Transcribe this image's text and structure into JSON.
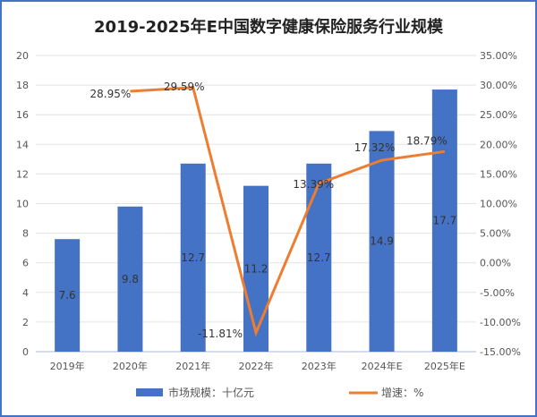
{
  "chart_data": {
    "type": "bar+line",
    "title": "2019-2025年E中国数字健康保险服务行业规模",
    "categories": [
      "2019年",
      "2020年",
      "2021年",
      "2022年",
      "2023年",
      "2024年E",
      "2025年E"
    ],
    "series": [
      {
        "name": "市场规模：十亿元",
        "type": "bar",
        "axis": "left",
        "color": "#4472c4",
        "values": [
          7.6,
          9.8,
          12.7,
          11.2,
          12.7,
          14.9,
          17.7
        ],
        "labels": [
          "7.6",
          "9.8",
          "12.7",
          "11.2",
          "12.7",
          "14.9",
          "17.7"
        ]
      },
      {
        "name": "增速：%",
        "type": "line",
        "axis": "right",
        "color": "#ed7d31",
        "values": [
          null,
          28.95,
          29.59,
          -11.81,
          13.39,
          17.32,
          18.79
        ],
        "labels": [
          null,
          "28.95%",
          "29.59%",
          "-11.81%",
          "13.39%",
          "17.32%",
          "18.79%"
        ]
      }
    ],
    "ylim_left": [
      0,
      20
    ],
    "yticks_left": [
      "0",
      "2",
      "4",
      "6",
      "8",
      "10",
      "12",
      "14",
      "16",
      "18",
      "20"
    ],
    "ylim_right": [
      -15,
      35
    ],
    "yticks_right": [
      "-15.00%",
      "-10.00%",
      "-5.00%",
      "0.00%",
      "5.00%",
      "10.00%",
      "15.00%",
      "20.00%",
      "25.00%",
      "30.00%",
      "35.00%"
    ],
    "grid": true,
    "legend": "bottom"
  }
}
